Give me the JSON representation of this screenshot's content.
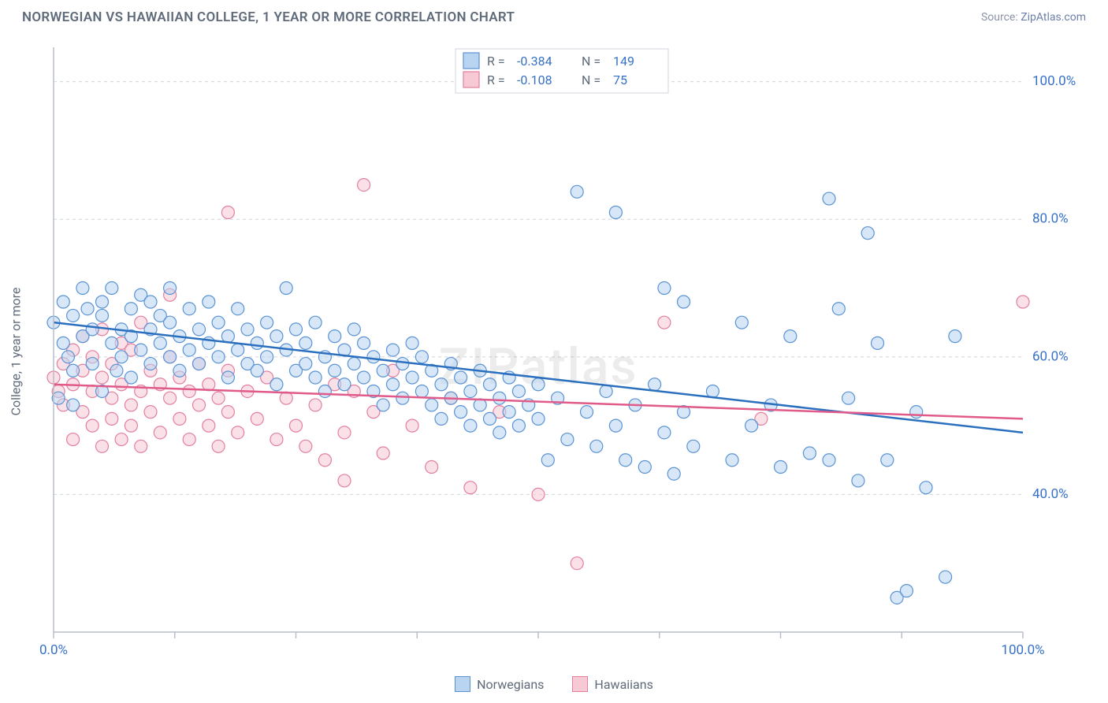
{
  "title": "NORWEGIAN VS HAWAIIAN COLLEGE, 1 YEAR OR MORE CORRELATION CHART",
  "source_label": "Source:",
  "source_name": "ZipAtlas.com",
  "y_axis_label": "College, 1 year or more",
  "watermark": "ZIPatlas",
  "chart": {
    "type": "scatter",
    "background_color": "#ffffff",
    "grid_color": "#d0d5dd",
    "axis_color": "#b9bec9",
    "tick_label_color": "#3670c7",
    "xlim": [
      0,
      100
    ],
    "ylim": [
      20,
      105
    ],
    "x_ticks": [
      0,
      12.5,
      25,
      37.5,
      50,
      62.5,
      75,
      87.5,
      100
    ],
    "x_tick_labels_shown": {
      "0": "0.0%",
      "100": "100.0%"
    },
    "y_gridlines": [
      40,
      60,
      80,
      100
    ],
    "y_tick_labels": {
      "40": "40.0%",
      "60": "60.0%",
      "80": "80.0%",
      "100": "100.0%"
    },
    "marker_radius": 8,
    "marker_opacity": 0.55,
    "line_width": 2.5,
    "stats": [
      {
        "swatch_fill": "#b8d4f0",
        "swatch_stroke": "#5a93d4",
        "R": "-0.384",
        "N": "149"
      },
      {
        "swatch_fill": "#f6c9d4",
        "swatch_stroke": "#e37fa0",
        "R": "-0.108",
        "N": "75"
      }
    ],
    "series": [
      {
        "name": "Norwegians",
        "color_fill": "#b8d4f0",
        "color_stroke": "#5a93d4",
        "line_color": "#2b6fbf",
        "trend": {
          "x1": 0,
          "y1": 65,
          "x2": 100,
          "y2": 49
        },
        "points": [
          [
            0,
            65
          ],
          [
            0.5,
            54
          ],
          [
            1,
            68
          ],
          [
            1,
            62
          ],
          [
            1.5,
            60
          ],
          [
            2,
            58
          ],
          [
            2,
            66
          ],
          [
            2,
            53
          ],
          [
            3,
            70
          ],
          [
            3,
            63
          ],
          [
            3.5,
            67
          ],
          [
            4,
            64
          ],
          [
            4,
            59
          ],
          [
            5,
            66
          ],
          [
            5,
            68
          ],
          [
            5,
            55
          ],
          [
            6,
            62
          ],
          [
            6,
            70
          ],
          [
            6.5,
            58
          ],
          [
            7,
            64
          ],
          [
            7,
            60
          ],
          [
            8,
            67
          ],
          [
            8,
            63
          ],
          [
            8,
            57
          ],
          [
            9,
            69
          ],
          [
            9,
            61
          ],
          [
            10,
            64
          ],
          [
            10,
            68
          ],
          [
            10,
            59
          ],
          [
            11,
            62
          ],
          [
            11,
            66
          ],
          [
            12,
            60
          ],
          [
            12,
            65
          ],
          [
            12,
            70
          ],
          [
            13,
            58
          ],
          [
            13,
            63
          ],
          [
            14,
            67
          ],
          [
            14,
            61
          ],
          [
            15,
            64
          ],
          [
            15,
            59
          ],
          [
            16,
            62
          ],
          [
            16,
            68
          ],
          [
            17,
            60
          ],
          [
            17,
            65
          ],
          [
            18,
            57
          ],
          [
            18,
            63
          ],
          [
            19,
            61
          ],
          [
            19,
            67
          ],
          [
            20,
            59
          ],
          [
            20,
            64
          ],
          [
            21,
            62
          ],
          [
            21,
            58
          ],
          [
            22,
            65
          ],
          [
            22,
            60
          ],
          [
            23,
            56
          ],
          [
            23,
            63
          ],
          [
            24,
            61
          ],
          [
            24,
            70
          ],
          [
            25,
            58
          ],
          [
            25,
            64
          ],
          [
            26,
            59
          ],
          [
            26,
            62
          ],
          [
            27,
            57
          ],
          [
            27,
            65
          ],
          [
            28,
            60
          ],
          [
            28,
            55
          ],
          [
            29,
            63
          ],
          [
            29,
            58
          ],
          [
            30,
            61
          ],
          [
            30,
            56
          ],
          [
            31,
            59
          ],
          [
            31,
            64
          ],
          [
            32,
            57
          ],
          [
            32,
            62
          ],
          [
            33,
            55
          ],
          [
            33,
            60
          ],
          [
            34,
            58
          ],
          [
            34,
            53
          ],
          [
            35,
            61
          ],
          [
            35,
            56
          ],
          [
            36,
            59
          ],
          [
            36,
            54
          ],
          [
            37,
            57
          ],
          [
            37,
            62
          ],
          [
            38,
            55
          ],
          [
            38,
            60
          ],
          [
            39,
            53
          ],
          [
            39,
            58
          ],
          [
            40,
            56
          ],
          [
            40,
            51
          ],
          [
            41,
            59
          ],
          [
            41,
            54
          ],
          [
            42,
            52
          ],
          [
            42,
            57
          ],
          [
            43,
            55
          ],
          [
            43,
            50
          ],
          [
            44,
            58
          ],
          [
            44,
            53
          ],
          [
            45,
            51
          ],
          [
            45,
            56
          ],
          [
            46,
            54
          ],
          [
            46,
            49
          ],
          [
            47,
            57
          ],
          [
            47,
            52
          ],
          [
            48,
            50
          ],
          [
            48,
            55
          ],
          [
            49,
            53
          ],
          [
            50,
            51
          ],
          [
            50,
            56
          ],
          [
            51,
            45
          ],
          [
            52,
            54
          ],
          [
            53,
            48
          ],
          [
            54,
            84
          ],
          [
            55,
            52
          ],
          [
            56,
            47
          ],
          [
            57,
            55
          ],
          [
            58,
            50
          ],
          [
            58,
            81
          ],
          [
            59,
            45
          ],
          [
            60,
            53
          ],
          [
            61,
            44
          ],
          [
            62,
            56
          ],
          [
            63,
            49
          ],
          [
            63,
            70
          ],
          [
            64,
            43
          ],
          [
            65,
            52
          ],
          [
            65,
            68
          ],
          [
            66,
            47
          ],
          [
            68,
            55
          ],
          [
            70,
            45
          ],
          [
            71,
            65
          ],
          [
            72,
            50
          ],
          [
            74,
            53
          ],
          [
            75,
            44
          ],
          [
            76,
            63
          ],
          [
            78,
            46
          ],
          [
            80,
            45
          ],
          [
            80,
            83
          ],
          [
            81,
            67
          ],
          [
            82,
            54
          ],
          [
            83,
            42
          ],
          [
            84,
            78
          ],
          [
            85,
            62
          ],
          [
            86,
            45
          ],
          [
            87,
            25
          ],
          [
            88,
            26
          ],
          [
            89,
            52
          ],
          [
            90,
            41
          ],
          [
            92,
            28
          ],
          [
            93,
            63
          ]
        ]
      },
      {
        "name": "Hawaiians",
        "color_fill": "#f6c9d4",
        "color_stroke": "#e37fa0",
        "line_color": "#e05a8a",
        "trend": {
          "x1": 0,
          "y1": 56,
          "x2": 100,
          "y2": 51
        },
        "points": [
          [
            0,
            57
          ],
          [
            0.5,
            55
          ],
          [
            1,
            59
          ],
          [
            1,
            53
          ],
          [
            2,
            61
          ],
          [
            2,
            56
          ],
          [
            2,
            48
          ],
          [
            3,
            58
          ],
          [
            3,
            52
          ],
          [
            3,
            63
          ],
          [
            4,
            55
          ],
          [
            4,
            50
          ],
          [
            4,
            60
          ],
          [
            5,
            57
          ],
          [
            5,
            47
          ],
          [
            5,
            64
          ],
          [
            6,
            54
          ],
          [
            6,
            51
          ],
          [
            6,
            59
          ],
          [
            7,
            56
          ],
          [
            7,
            48
          ],
          [
            7,
            62
          ],
          [
            8,
            53
          ],
          [
            8,
            50
          ],
          [
            8,
            61
          ],
          [
            9,
            55
          ],
          [
            9,
            47
          ],
          [
            9,
            65
          ],
          [
            10,
            52
          ],
          [
            10,
            58
          ],
          [
            11,
            49
          ],
          [
            11,
            56
          ],
          [
            12,
            54
          ],
          [
            12,
            60
          ],
          [
            12,
            69
          ],
          [
            13,
            51
          ],
          [
            13,
            57
          ],
          [
            14,
            48
          ],
          [
            14,
            55
          ],
          [
            15,
            53
          ],
          [
            15,
            59
          ],
          [
            16,
            50
          ],
          [
            16,
            56
          ],
          [
            17,
            47
          ],
          [
            17,
            54
          ],
          [
            18,
            52
          ],
          [
            18,
            58
          ],
          [
            18,
            81
          ],
          [
            19,
            49
          ],
          [
            20,
            55
          ],
          [
            21,
            51
          ],
          [
            22,
            57
          ],
          [
            23,
            48
          ],
          [
            24,
            54
          ],
          [
            25,
            50
          ],
          [
            26,
            47
          ],
          [
            27,
            53
          ],
          [
            28,
            45
          ],
          [
            29,
            56
          ],
          [
            30,
            49
          ],
          [
            30,
            42
          ],
          [
            31,
            55
          ],
          [
            32,
            85
          ],
          [
            33,
            52
          ],
          [
            34,
            46
          ],
          [
            35,
            58
          ],
          [
            37,
            50
          ],
          [
            39,
            44
          ],
          [
            41,
            54
          ],
          [
            43,
            41
          ],
          [
            46,
            52
          ],
          [
            50,
            40
          ],
          [
            54,
            30
          ],
          [
            63,
            65
          ],
          [
            73,
            51
          ],
          [
            100,
            68
          ]
        ]
      }
    ],
    "legend": [
      {
        "label": "Norwegians",
        "fill": "#b8d4f0",
        "stroke": "#5a93d4"
      },
      {
        "label": "Hawaiians",
        "fill": "#f6c9d4",
        "stroke": "#e37fa0"
      }
    ]
  }
}
